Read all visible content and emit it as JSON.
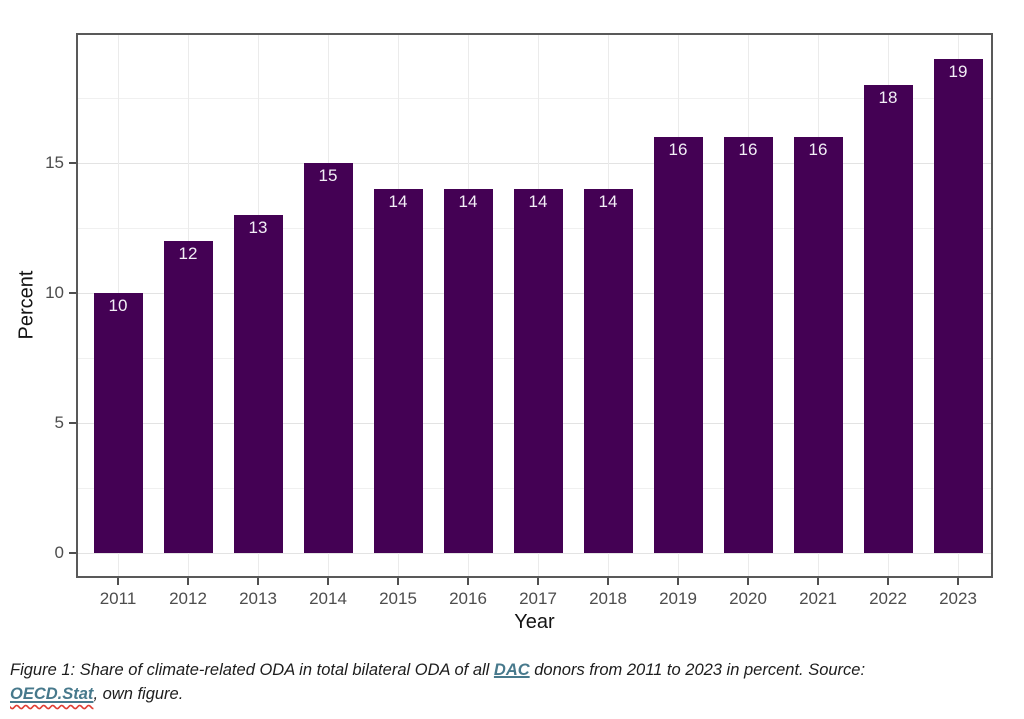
{
  "chart_data": {
    "type": "bar",
    "categories": [
      "2011",
      "2012",
      "2013",
      "2014",
      "2015",
      "2016",
      "2017",
      "2018",
      "2019",
      "2020",
      "2021",
      "2022",
      "2023"
    ],
    "values": [
      10,
      12,
      13,
      15,
      14,
      14,
      14,
      14,
      16,
      16,
      16,
      18,
      19
    ],
    "title": "",
    "xlabel": "Year",
    "ylabel": "Percent",
    "ylim": [
      0,
      20
    ],
    "y_major_ticks": [
      0,
      5,
      10,
      15
    ],
    "y_minor_gridlines": [
      2.5,
      7.5,
      12.5,
      17.5
    ],
    "grid": "horizontal major+minor, vertical major per category",
    "legend_position": "none",
    "bar_labels_shown_inside_top": true,
    "bar_color": "#440154",
    "bar_label_color": "#f2eef6",
    "gridline_color": "#e3e3e3",
    "panel_border_color": "#595959",
    "tick_label_color": "#4d4d4d"
  },
  "caption": {
    "part1": "Figure 1: Share of climate-related ODA in total bilateral ODA of all ",
    "link_dac": "DAC",
    "part2": " donors from 2011 to 2023 in percent. Source: ",
    "link_oecd": "OECD.Stat",
    "part3": ", own figure.",
    "link_color": "#47798c"
  }
}
